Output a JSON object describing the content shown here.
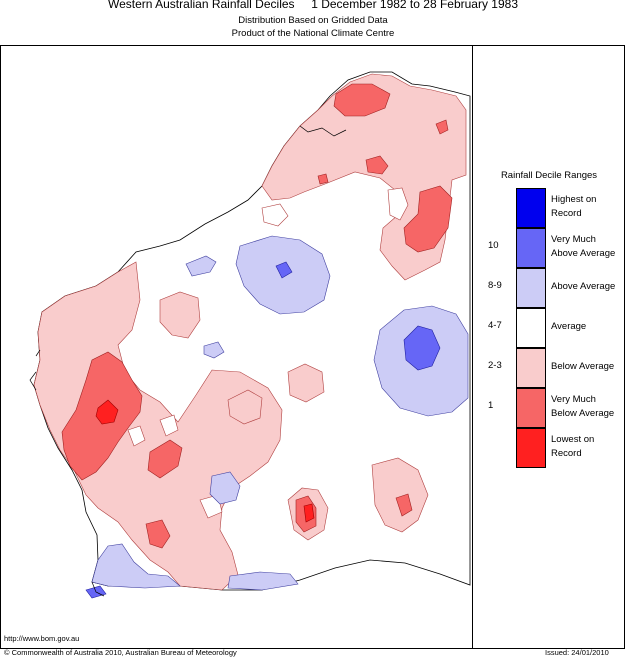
{
  "header": {
    "title": "Western Australian Rainfall Deciles     1 December 1982 to 28 February 1983",
    "subtitle1": "Distribution Based on Gridded Data",
    "subtitle2": "Product of the National Climate Centre"
  },
  "legend": {
    "title": "Rainfall Decile Ranges",
    "items": [
      {
        "label": "Highest on\nRecord",
        "range": "",
        "color": "#0000ee"
      },
      {
        "label": "Very Much\nAbove Average",
        "range": "10",
        "color": "#6666f6"
      },
      {
        "label": "Above Average",
        "range": "8-9",
        "color": "#ccccf6"
      },
      {
        "label": "Average",
        "range": "4-7",
        "color": "#ffffff"
      },
      {
        "label": "Below Average",
        "range": "2-3",
        "color": "#f9cccc"
      },
      {
        "label": "Very Much\nBelow Average",
        "range": "1",
        "color": "#f66666"
      },
      {
        "label": "Lowest on\nRecord",
        "range": "",
        "color": "#ff2020"
      }
    ]
  },
  "footer": {
    "url": "http://www.bom.gov.au",
    "copyright": "© Commonwealth of Australia 2010, Australian Bureau of Meteorology",
    "issued": "Issued: 24/01/2010"
  },
  "colors": {
    "below": "#f9cccc",
    "very_below": "#f66666",
    "lowest": "#ff2020",
    "above": "#ccccf6",
    "very_above": "#6666f6",
    "highest": "#0000ee"
  }
}
